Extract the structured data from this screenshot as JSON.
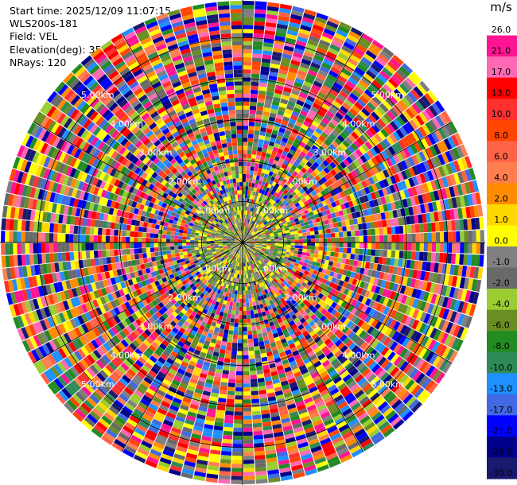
{
  "header": {
    "start_time": "Start time: 2025/12/09 11:07:15",
    "instrument": "WLS200s-181",
    "field": "Field: VEL",
    "elevation": "Elevation(deg): 35.00",
    "nrays": "NRays: 120"
  },
  "chart_data": {
    "type": "heatmap",
    "projection": "polar PPI",
    "field": "VEL",
    "unit": "m/s",
    "n_rays": 120,
    "elevation_deg": 35.0,
    "range_rings": [
      {
        "range_km": 1,
        "label": "1.00km"
      },
      {
        "range_km": 2,
        "label": "2.00km"
      },
      {
        "range_km": 3,
        "label": "3.00km"
      },
      {
        "range_km": 4,
        "label": "4.00km"
      },
      {
        "range_km": 5,
        "label": "5.00km"
      }
    ],
    "max_range_km": 5.9,
    "colorbar": {
      "unit": "m/s",
      "ticks": [
        "26.0",
        "21.0",
        "17.0",
        "13.0",
        "10.0",
        "8.0",
        "6.0",
        "4.0",
        "2.0",
        "1.0",
        "0.0",
        "-1.0",
        "-2.0",
        "-4.0",
        "-6.0",
        "-8.0",
        "-10.0",
        "-13.0",
        "-17.0",
        "-21.0",
        "-26.0",
        "-30.0"
      ],
      "colors": [
        "#ffffff",
        "#ff1493",
        "#ff69b4",
        "#ff0000",
        "#ff3030",
        "#ff4500",
        "#ff6347",
        "#ff7f50",
        "#ff8c00",
        "#ffd700",
        "#ffff00",
        "#808080",
        "#696969",
        "#9acd32",
        "#6b8e23",
        "#228b22",
        "#2e8b57",
        "#1e90ff",
        "#4169e1",
        "#0000ff",
        "#00008b",
        "#191970"
      ]
    }
  }
}
